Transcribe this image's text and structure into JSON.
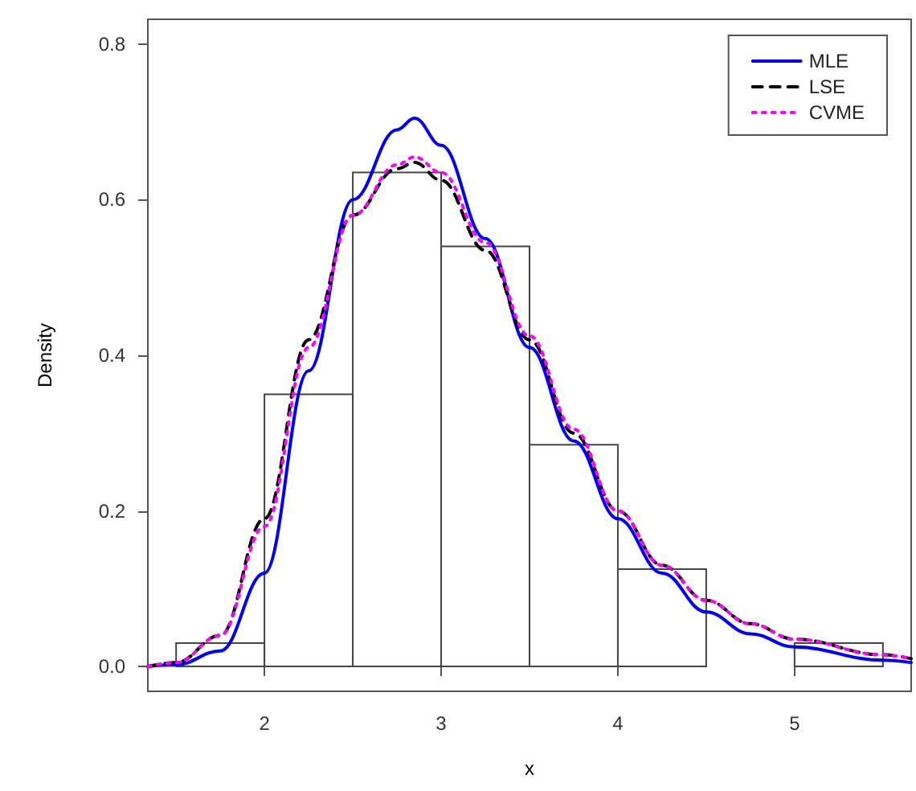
{
  "chart_data": {
    "type": "histogram",
    "xlabel": "x",
    "ylabel": "Density",
    "bins": [
      1.5,
      2,
      2.5,
      3,
      3.5,
      4,
      4.5,
      5,
      5.5
    ],
    "values": [
      0.03,
      0.35,
      0.635,
      0.54,
      0.285,
      0.125,
      0,
      0.03
    ],
    "color": "#ffffff",
    "series": [
      {
        "name": "MLE",
        "type": "line",
        "color": "#0000ff",
        "line_style": "solid",
        "x": [
          1.34,
          1.5,
          1.75,
          2.0,
          2.25,
          2.5,
          2.75,
          2.85,
          3.0,
          3.25,
          3.5,
          3.75,
          4.0,
          4.25,
          4.5,
          4.75,
          5.0,
          5.5,
          5.66
        ],
        "values": [
          0,
          0.002,
          0.02,
          0.12,
          0.38,
          0.6,
          0.69,
          0.705,
          0.67,
          0.55,
          0.41,
          0.29,
          0.19,
          0.12,
          0.07,
          0.042,
          0.025,
          0.008,
          0.005
        ]
      },
      {
        "name": "LSE",
        "type": "line",
        "color": "#000000",
        "line_style": "dashed",
        "x": [
          1.34,
          1.5,
          1.75,
          2.0,
          2.25,
          2.5,
          2.75,
          2.85,
          3.0,
          3.25,
          3.5,
          3.75,
          4.0,
          4.25,
          4.5,
          4.75,
          5.0,
          5.5,
          5.66
        ],
        "values": [
          0,
          0.005,
          0.04,
          0.19,
          0.42,
          0.58,
          0.64,
          0.648,
          0.625,
          0.535,
          0.42,
          0.3,
          0.2,
          0.13,
          0.085,
          0.055,
          0.035,
          0.015,
          0.01
        ]
      },
      {
        "name": "CVME",
        "type": "line",
        "color": "#ff00ff",
        "line_style": "dotted",
        "x": [
          1.34,
          1.5,
          1.75,
          2.0,
          2.25,
          2.5,
          2.75,
          2.85,
          3.0,
          3.25,
          3.5,
          3.75,
          4.0,
          4.25,
          4.5,
          4.75,
          5.0,
          5.5,
          5.66
        ],
        "values": [
          0,
          0.005,
          0.04,
          0.18,
          0.41,
          0.58,
          0.645,
          0.655,
          0.635,
          0.545,
          0.425,
          0.305,
          0.2,
          0.13,
          0.085,
          0.055,
          0.035,
          0.015,
          0.01
        ]
      }
    ],
    "xlim": [
      1.34,
      5.66
    ],
    "ylim": [
      -0.032,
      0.832
    ],
    "xticks": [
      2,
      3,
      4,
      5
    ],
    "yticks": [
      {
        "value": 0,
        "label": "0.0"
      },
      {
        "value": 0.2,
        "label": "0.2"
      },
      {
        "value": 0.4,
        "label": "0.4"
      },
      {
        "value": 0.6,
        "label": "0.6"
      },
      {
        "value": 0.8,
        "label": "0.8"
      }
    ],
    "legend": "top right",
    "grid": false
  }
}
